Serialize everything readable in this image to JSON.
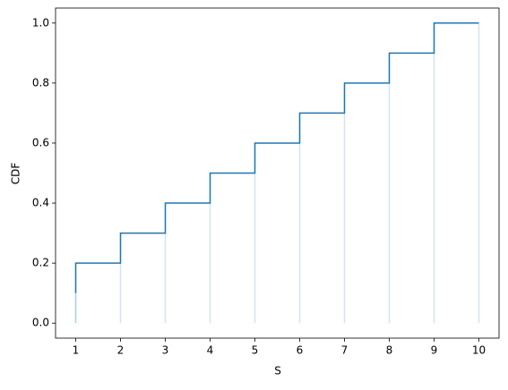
{
  "chart_data": {
    "type": "step",
    "xlabel": "S",
    "ylabel": "CDF",
    "x": [
      1,
      1,
      2,
      3,
      4,
      5,
      6,
      7,
      8,
      9,
      10
    ],
    "series": [
      {
        "color": "#1f77b4",
        "values": [
          0.1,
          0.2,
          0.3,
          0.4,
          0.5,
          0.6,
          0.7,
          0.8,
          0.9,
          1.0,
          1.0
        ]
      }
    ],
    "xlim": [
      0.55,
      10.45
    ],
    "ylim": [
      -0.05,
      1.05
    ],
    "xticks": [
      1,
      2,
      3,
      4,
      5,
      6,
      7,
      8,
      9,
      10
    ],
    "yticks": [
      {
        "value": 0,
        "label": "0.0"
      },
      0.2,
      0.4,
      0.6,
      0.8,
      {
        "value": 1,
        "label": "1.0"
      }
    ]
  }
}
